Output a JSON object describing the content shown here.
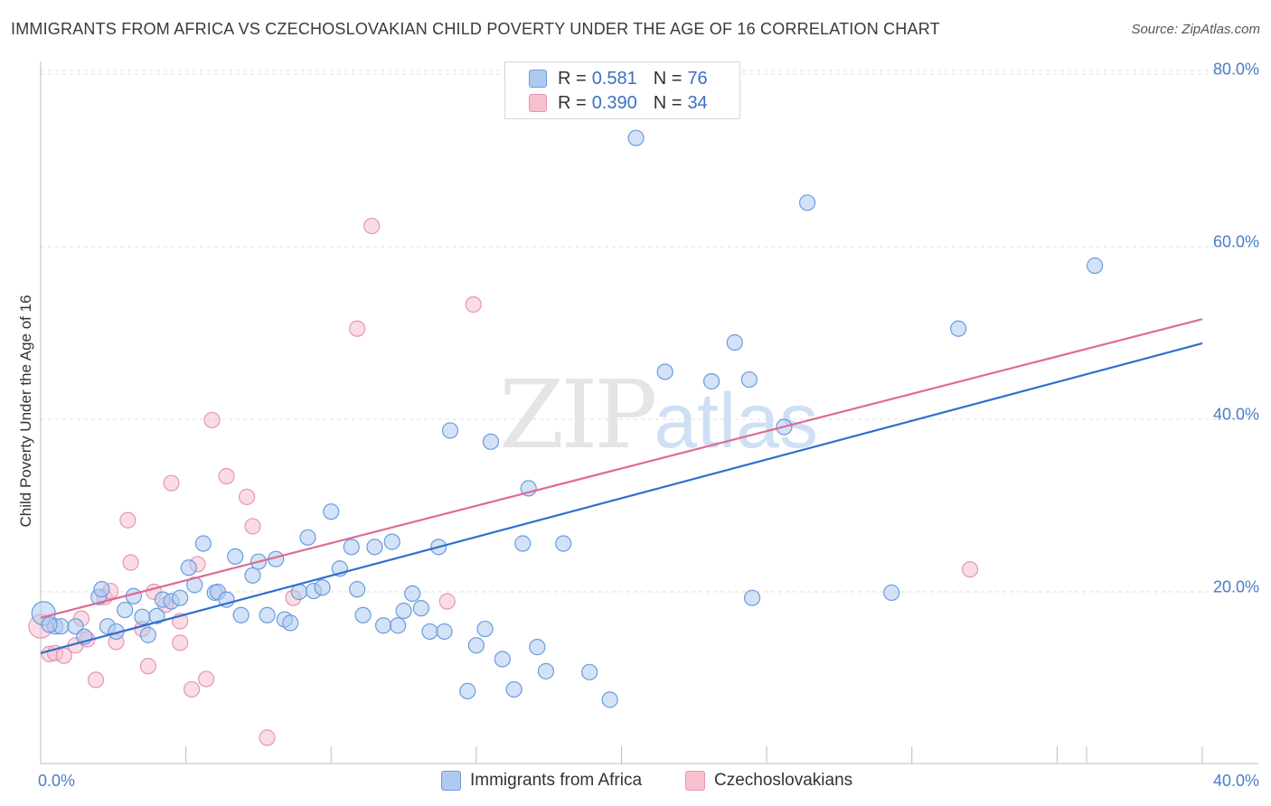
{
  "title": "IMMIGRANTS FROM AFRICA VS CZECHOSLOVAKIAN CHILD POVERTY UNDER THE AGE OF 16 CORRELATION CHART",
  "source": "Source: ZipAtlas.com",
  "watermark": {
    "zip": "ZIP",
    "atlas": "atlas"
  },
  "legend": {
    "rows": [
      {
        "r_label": "R =",
        "r_value": "0.581",
        "n_label": "N =",
        "n_value": "76",
        "color": "#aecbef"
      },
      {
        "r_label": "R =",
        "r_value": "0.390",
        "n_label": "N =",
        "n_value": "34",
        "color": "#f6c0cf"
      }
    ]
  },
  "bottom_legend": [
    {
      "label": "Immigrants from Africa",
      "color": "#aecbef"
    },
    {
      "label": "Czechoslovakians",
      "color": "#f6c0cf"
    }
  ],
  "chart_data": {
    "type": "scatter",
    "title": "IMMIGRANTS FROM AFRICA VS CZECHOSLOVAKIAN CHILD POVERTY UNDER THE AGE OF 16 CORRELATION CHART",
    "xlabel": "",
    "ylabel": "Child Poverty Under the Age of 16",
    "xlim": [
      0,
      40
    ],
    "ylim": [
      0,
      82
    ],
    "x_tick_labels": [
      "0.0%",
      "40.0%"
    ],
    "y_ticks": [
      20,
      40,
      60,
      80
    ],
    "y_tick_labels": [
      "20.0%",
      "40.0%",
      "60.0%",
      "80.0%"
    ],
    "grid": true,
    "series": [
      {
        "name": "Immigrants from Africa",
        "color": "#6a9be0",
        "fill": "#aecbef",
        "trend": {
          "x": [
            0,
            40
          ],
          "y": [
            12.9,
            48.8
          ],
          "color": "#2d6fd0"
        },
        "points": [
          [
            0.1,
            17.5
          ],
          [
            0.5,
            16.0
          ],
          [
            0.7,
            16.0
          ],
          [
            1.2,
            16.0
          ],
          [
            1.5,
            14.8
          ],
          [
            2.0,
            19.4
          ],
          [
            2.1,
            20.3
          ],
          [
            2.3,
            16.0
          ],
          [
            2.6,
            15.4
          ],
          [
            2.9,
            17.9
          ],
          [
            3.2,
            19.5
          ],
          [
            3.5,
            17.1
          ],
          [
            3.7,
            15.0
          ],
          [
            4.0,
            17.2
          ],
          [
            4.2,
            19.1
          ],
          [
            4.5,
            18.9
          ],
          [
            4.8,
            19.3
          ],
          [
            5.1,
            22.8
          ],
          [
            5.3,
            20.8
          ],
          [
            5.6,
            25.6
          ],
          [
            6.0,
            19.9
          ],
          [
            6.1,
            20.0
          ],
          [
            6.4,
            19.1
          ],
          [
            6.7,
            24.1
          ],
          [
            6.9,
            17.3
          ],
          [
            7.3,
            21.9
          ],
          [
            7.5,
            23.5
          ],
          [
            7.8,
            17.3
          ],
          [
            8.1,
            23.8
          ],
          [
            8.4,
            16.8
          ],
          [
            8.6,
            16.4
          ],
          [
            8.9,
            20.0
          ],
          [
            9.2,
            26.3
          ],
          [
            9.4,
            20.1
          ],
          [
            9.7,
            20.5
          ],
          [
            10.0,
            29.3
          ],
          [
            10.3,
            22.7
          ],
          [
            10.7,
            25.2
          ],
          [
            10.9,
            20.3
          ],
          [
            11.1,
            17.3
          ],
          [
            11.5,
            25.2
          ],
          [
            11.8,
            16.1
          ],
          [
            12.1,
            25.8
          ],
          [
            12.3,
            16.1
          ],
          [
            12.5,
            17.8
          ],
          [
            12.8,
            19.8
          ],
          [
            13.1,
            18.1
          ],
          [
            13.4,
            15.4
          ],
          [
            13.7,
            25.2
          ],
          [
            13.9,
            15.4
          ],
          [
            14.1,
            38.7
          ],
          [
            14.7,
            8.5
          ],
          [
            15.0,
            13.8
          ],
          [
            15.3,
            15.7
          ],
          [
            15.5,
            37.4
          ],
          [
            15.9,
            12.2
          ],
          [
            16.3,
            8.7
          ],
          [
            16.6,
            25.6
          ],
          [
            16.8,
            32.0
          ],
          [
            17.1,
            13.6
          ],
          [
            17.4,
            10.8
          ],
          [
            18.0,
            25.6
          ],
          [
            18.9,
            10.7
          ],
          [
            19.6,
            7.5
          ],
          [
            20.5,
            72.6
          ],
          [
            21.5,
            45.5
          ],
          [
            23.1,
            44.4
          ],
          [
            23.9,
            48.9
          ],
          [
            24.4,
            44.6
          ],
          [
            24.5,
            19.3
          ],
          [
            25.6,
            39.1
          ],
          [
            26.4,
            65.1
          ],
          [
            29.3,
            19.9
          ],
          [
            31.6,
            50.5
          ],
          [
            36.3,
            57.8
          ],
          [
            0.3,
            16.2
          ]
        ]
      },
      {
        "name": "Czechoslovakians",
        "color": "#e596ad",
        "fill": "#f6c0cf",
        "trend": {
          "x": [
            0,
            40
          ],
          "y": [
            17.0,
            51.6
          ],
          "color": "#e06a93"
        },
        "points": [
          [
            0.0,
            16.0
          ],
          [
            0.3,
            12.8
          ],
          [
            0.5,
            12.9
          ],
          [
            0.8,
            12.6
          ],
          [
            1.2,
            13.8
          ],
          [
            1.4,
            16.9
          ],
          [
            1.6,
            14.5
          ],
          [
            1.9,
            9.8
          ],
          [
            2.2,
            19.4
          ],
          [
            2.4,
            20.1
          ],
          [
            2.6,
            14.2
          ],
          [
            3.0,
            28.3
          ],
          [
            3.1,
            23.4
          ],
          [
            3.5,
            15.7
          ],
          [
            3.7,
            11.4
          ],
          [
            3.9,
            20.0
          ],
          [
            4.3,
            18.5
          ],
          [
            4.5,
            32.6
          ],
          [
            4.8,
            14.1
          ],
          [
            4.8,
            16.6
          ],
          [
            5.2,
            8.7
          ],
          [
            5.4,
            23.2
          ],
          [
            5.7,
            9.9
          ],
          [
            5.9,
            39.9
          ],
          [
            6.4,
            33.4
          ],
          [
            7.1,
            31.0
          ],
          [
            7.3,
            27.6
          ],
          [
            7.8,
            3.1
          ],
          [
            8.7,
            19.3
          ],
          [
            10.9,
            50.5
          ],
          [
            11.4,
            62.4
          ],
          [
            14.0,
            18.9
          ],
          [
            14.9,
            53.3
          ],
          [
            32.0,
            22.6
          ]
        ]
      }
    ]
  }
}
